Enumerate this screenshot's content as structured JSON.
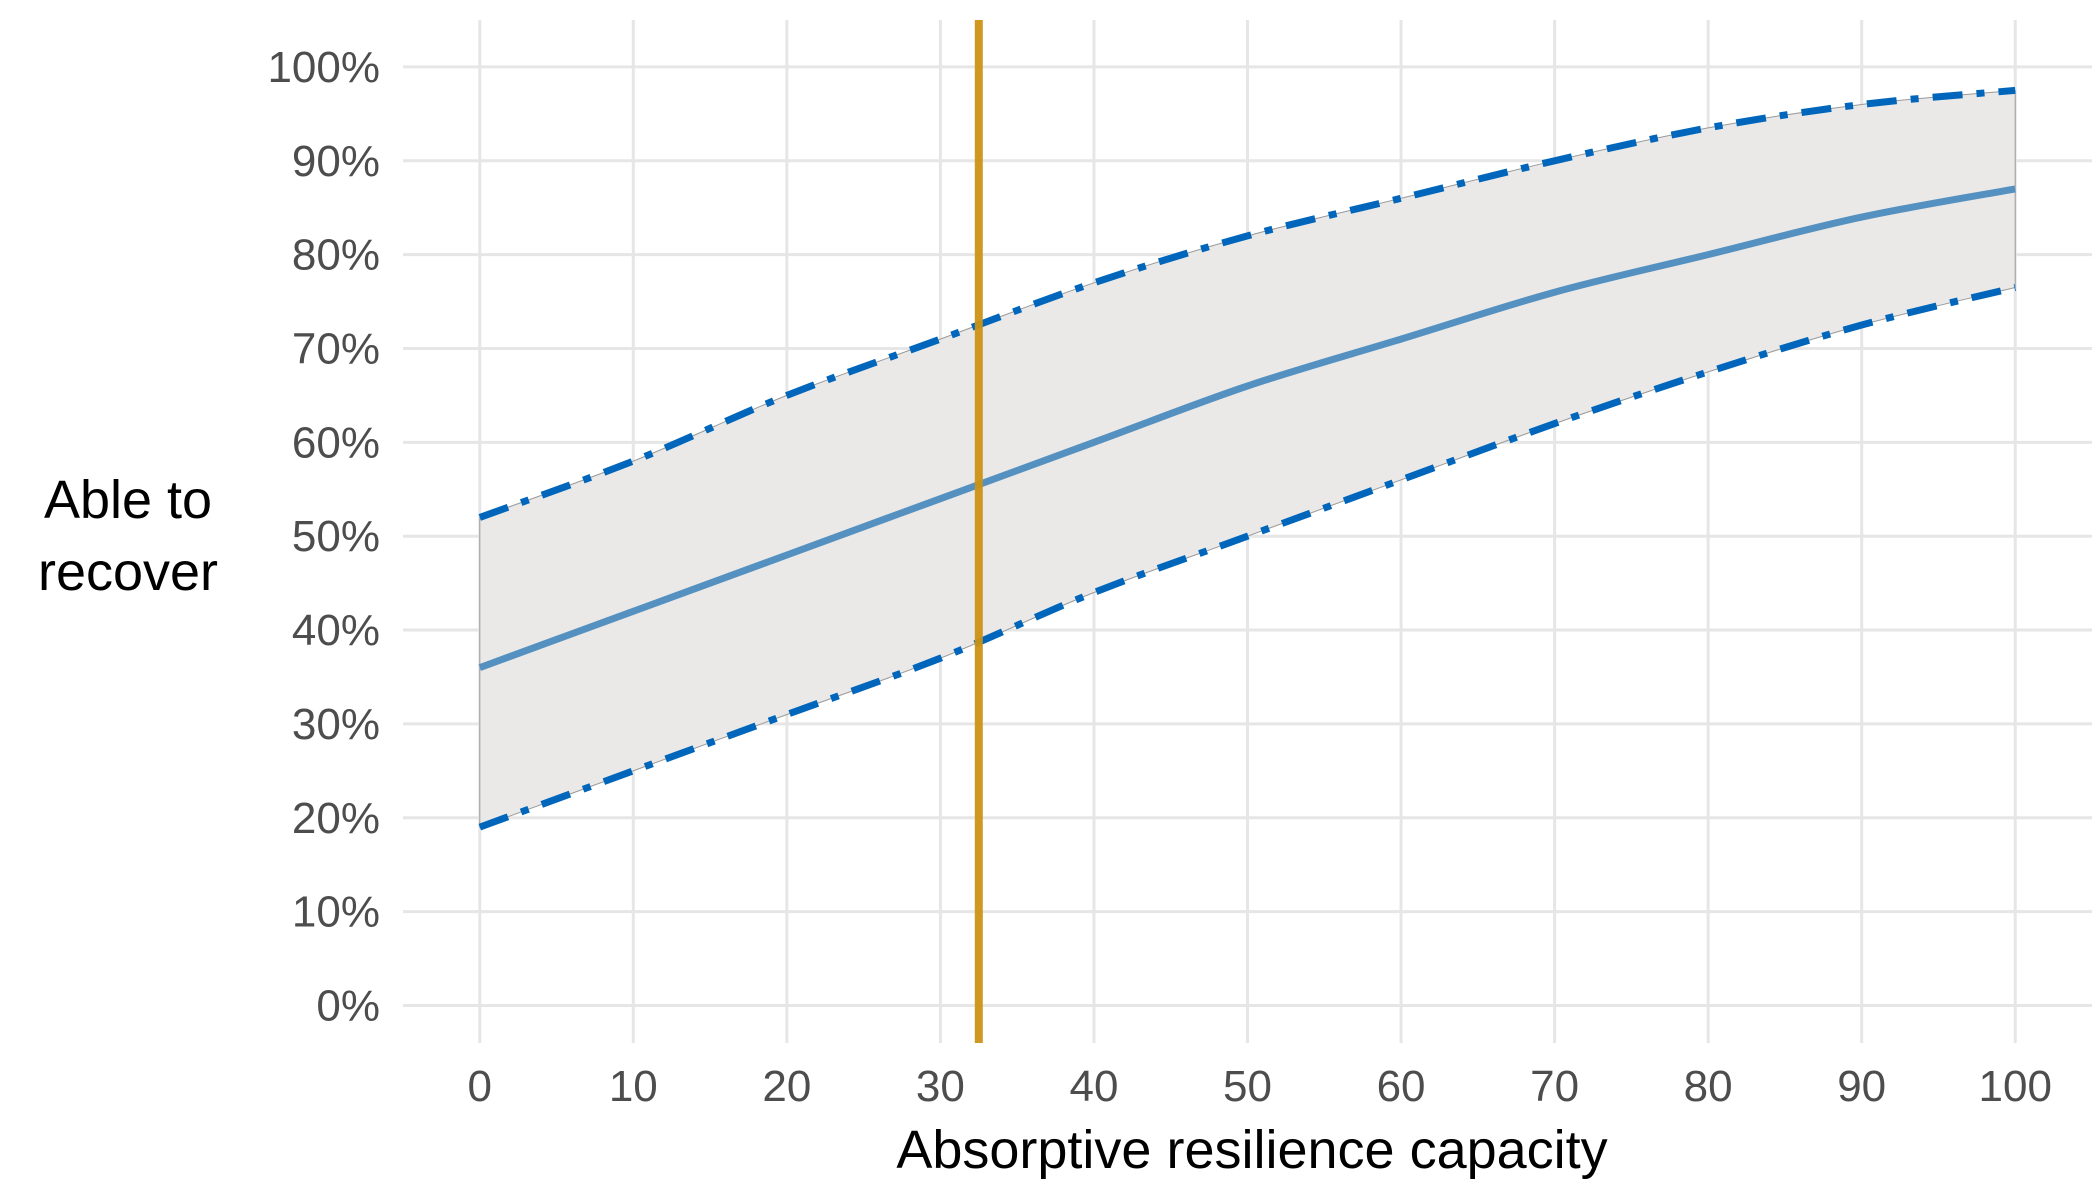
{
  "chart_data": {
    "type": "line",
    "xlabel": "Absorptive resilience capacity",
    "ylabel_lines": [
      "Able to",
      "recover"
    ],
    "xlim": [
      -5,
      105
    ],
    "ylim": [
      -4,
      105
    ],
    "x_ticks": [
      0,
      10,
      20,
      30,
      40,
      50,
      60,
      70,
      80,
      90,
      100
    ],
    "x_tick_labels": [
      "0",
      "10",
      "20",
      "30",
      "40",
      "50",
      "60",
      "70",
      "80",
      "90",
      "100"
    ],
    "y_ticks": [
      0,
      10,
      20,
      30,
      40,
      50,
      60,
      70,
      80,
      90,
      100
    ],
    "y_tick_labels": [
      "0%",
      "10%",
      "20%",
      "30%",
      "40%",
      "50%",
      "60%",
      "70%",
      "80%",
      "90%",
      "100%"
    ],
    "grid": true,
    "x": [
      0,
      10,
      20,
      30,
      40,
      50,
      60,
      70,
      80,
      90,
      100
    ],
    "series": [
      {
        "role": "estimate",
        "values": [
          36,
          42,
          48,
          54,
          60,
          66,
          71,
          76,
          80,
          84,
          87
        ]
      },
      {
        "role": "upper",
        "values": [
          52,
          58,
          65,
          71,
          77,
          82,
          86,
          90,
          93.5,
          96,
          97.5
        ]
      },
      {
        "role": "lower",
        "values": [
          19,
          25,
          31,
          37,
          44,
          50,
          56,
          62,
          67.5,
          72.5,
          76.5
        ]
      }
    ],
    "reference_line": {
      "orientation": "vertical",
      "x": 32.5,
      "color": "#CC9214"
    },
    "colors": {
      "estimate": "#5591C0",
      "bounds": "#0066BB",
      "band": "#EAE9E8",
      "grid": "#E6E6E6"
    }
  }
}
